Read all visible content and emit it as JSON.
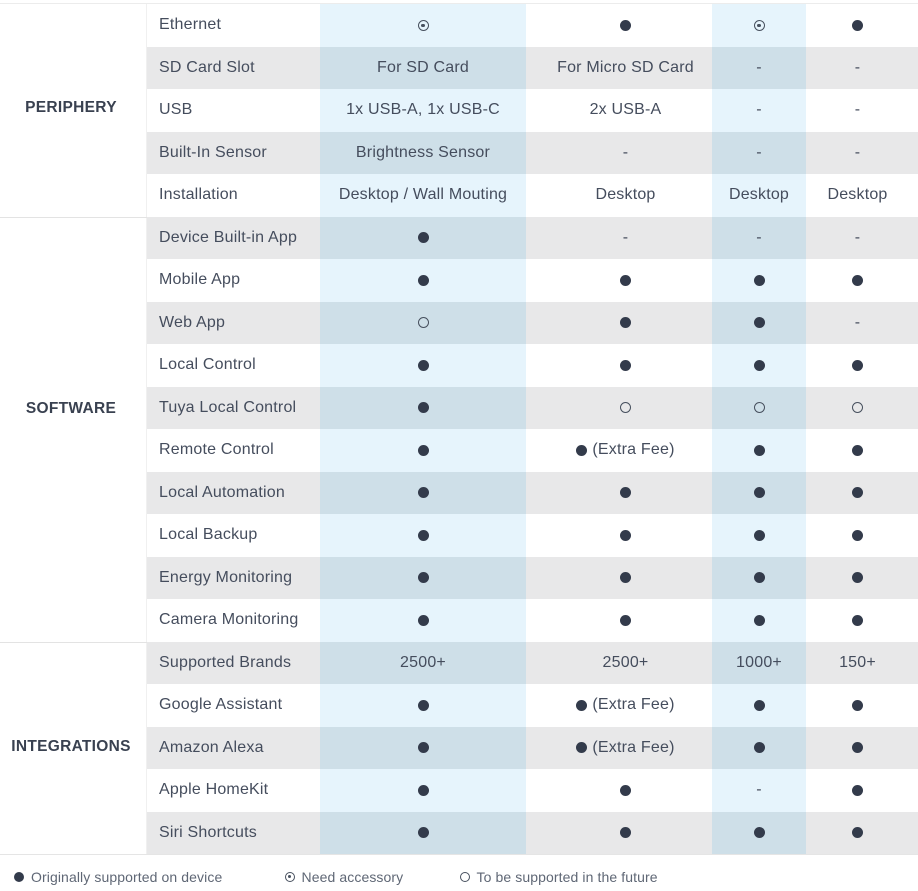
{
  "table": {
    "categories": [
      {
        "label": "PERIPHERY",
        "rows": [
          {
            "feature": "Ethernet",
            "values": [
              {
                "symbol": "accessory"
              },
              {
                "symbol": "supported"
              },
              {
                "symbol": "accessory"
              },
              {
                "symbol": "supported"
              }
            ]
          },
          {
            "feature": "SD Card Slot",
            "values": [
              {
                "text": "For SD Card"
              },
              {
                "text": "For Micro SD Card"
              },
              {
                "text": "-"
              },
              {
                "text": "-"
              }
            ]
          },
          {
            "feature": "USB",
            "values": [
              {
                "text": "1x USB-A, 1x USB-C"
              },
              {
                "text": "2x USB-A"
              },
              {
                "text": "-"
              },
              {
                "text": "-"
              }
            ]
          },
          {
            "feature": "Built-In Sensor",
            "values": [
              {
                "text": "Brightness Sensor"
              },
              {
                "text": "-"
              },
              {
                "text": "-"
              },
              {
                "text": "-"
              }
            ]
          },
          {
            "feature": "Installation",
            "values": [
              {
                "text": "Desktop / Wall Mouting"
              },
              {
                "text": "Desktop"
              },
              {
                "text": "Desktop"
              },
              {
                "text": "Desktop"
              }
            ]
          }
        ]
      },
      {
        "label": "SOFTWARE",
        "rows": [
          {
            "feature": "Device Built-in App",
            "values": [
              {
                "symbol": "supported"
              },
              {
                "text": "-"
              },
              {
                "text": "-"
              },
              {
                "text": "-"
              }
            ]
          },
          {
            "feature": "Mobile App",
            "values": [
              {
                "symbol": "supported"
              },
              {
                "symbol": "supported"
              },
              {
                "symbol": "supported"
              },
              {
                "symbol": "supported"
              }
            ]
          },
          {
            "feature": "Web App",
            "values": [
              {
                "symbol": "future"
              },
              {
                "symbol": "supported"
              },
              {
                "symbol": "supported"
              },
              {
                "text": "-"
              }
            ]
          },
          {
            "feature": "Local Control",
            "values": [
              {
                "symbol": "supported"
              },
              {
                "symbol": "supported"
              },
              {
                "symbol": "supported"
              },
              {
                "symbol": "supported"
              }
            ]
          },
          {
            "feature": "Tuya Local Control",
            "values": [
              {
                "symbol": "supported"
              },
              {
                "symbol": "future"
              },
              {
                "symbol": "future"
              },
              {
                "symbol": "future"
              }
            ]
          },
          {
            "feature": "Remote Control",
            "values": [
              {
                "symbol": "supported"
              },
              {
                "symbol": "supported",
                "text": "(Extra Fee)"
              },
              {
                "symbol": "supported"
              },
              {
                "symbol": "supported"
              }
            ]
          },
          {
            "feature": "Local Automation",
            "values": [
              {
                "symbol": "supported"
              },
              {
                "symbol": "supported"
              },
              {
                "symbol": "supported"
              },
              {
                "symbol": "supported"
              }
            ]
          },
          {
            "feature": "Local Backup",
            "values": [
              {
                "symbol": "supported"
              },
              {
                "symbol": "supported"
              },
              {
                "symbol": "supported"
              },
              {
                "symbol": "supported"
              }
            ]
          },
          {
            "feature": "Energy Monitoring",
            "values": [
              {
                "symbol": "supported"
              },
              {
                "symbol": "supported"
              },
              {
                "symbol": "supported"
              },
              {
                "symbol": "supported"
              }
            ]
          },
          {
            "feature": "Camera Monitoring",
            "values": [
              {
                "symbol": "supported"
              },
              {
                "symbol": "supported"
              },
              {
                "symbol": "supported"
              },
              {
                "symbol": "supported"
              }
            ]
          }
        ]
      },
      {
        "label": "INTEGRATIONS",
        "rows": [
          {
            "feature": "Supported Brands",
            "values": [
              {
                "text": "2500+"
              },
              {
                "text": "2500+"
              },
              {
                "text": "1000+"
              },
              {
                "text": "150+"
              }
            ]
          },
          {
            "feature": "Google Assistant",
            "values": [
              {
                "symbol": "supported"
              },
              {
                "symbol": "supported",
                "text": "(Extra Fee)"
              },
              {
                "symbol": "supported"
              },
              {
                "symbol": "supported"
              }
            ]
          },
          {
            "feature": "Amazon Alexa",
            "values": [
              {
                "symbol": "supported"
              },
              {
                "symbol": "supported",
                "text": "(Extra Fee)"
              },
              {
                "symbol": "supported"
              },
              {
                "symbol": "supported"
              }
            ]
          },
          {
            "feature": "Apple HomeKit",
            "values": [
              {
                "symbol": "supported"
              },
              {
                "symbol": "supported"
              },
              {
                "text": "-"
              },
              {
                "symbol": "supported"
              }
            ]
          },
          {
            "feature": "Siri Shortcuts",
            "values": [
              {
                "symbol": "supported"
              },
              {
                "symbol": "supported"
              },
              {
                "symbol": "supported"
              },
              {
                "symbol": "supported"
              }
            ]
          }
        ]
      }
    ]
  },
  "legend": {
    "items": [
      {
        "symbol": "supported",
        "label": "Originally supported on device"
      },
      {
        "symbol": "accessory",
        "label": "Need accessory"
      },
      {
        "symbol": "future",
        "label": "To be supported in the future"
      }
    ]
  },
  "colors": {
    "row_gray": "#e8e8e9",
    "tint_on_white": "#e6f4fc",
    "tint_on_gray": "#cedfe8",
    "text": "#454d5d",
    "category_text": "#394150",
    "symbol": "#333b4b",
    "legend_text": "#5f6775"
  }
}
